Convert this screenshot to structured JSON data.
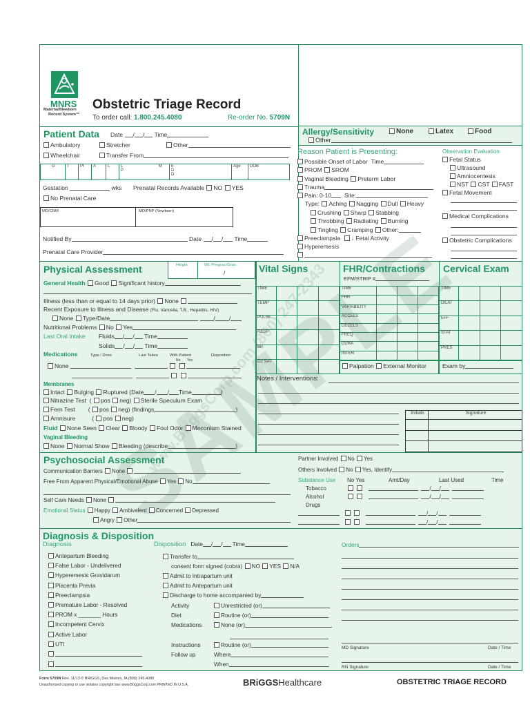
{
  "colors": {
    "brand_green": "#1f8a5a",
    "section_bg": "#e6f4ea"
  },
  "watermark": {
    "main": "SAMPLE",
    "contact": "www.BriggsCorp.com (800) 247-2343"
  },
  "header": {
    "logo_abbr": "MNRS",
    "logo_sub1": "Maternal/Newborn",
    "logo_sub2": "Record System™",
    "title": "Obstetric Triage Record",
    "order_label": "To order call:",
    "order_phone": "1.800.245.4080",
    "reorder_label": "Re-order No.",
    "reorder_no": "5709N"
  },
  "patient": {
    "title": "Patient Data",
    "date": "Date",
    "time": "Time",
    "ambulatory": "Ambulatory",
    "stretcher": "Stretcher",
    "other": "Other",
    "wheelchair": "Wheelchair",
    "transfer": "Transfer From",
    "gtpal": [
      "G",
      "T",
      "Pt",
      "A",
      "L",
      "L M P",
      "E D D",
      "Age",
      "DOB"
    ],
    "gestation": "Gestation",
    "wks": "wks",
    "prenatal_records": "Prenatal Records Available",
    "no": "NO",
    "yes": "YES",
    "no_prenatal": "No Prenatal Care",
    "md_cnm": "MD/CNM",
    "md_pnp": "MD/PNP (Newborn)",
    "notified_by": "Notified By",
    "prenatal_provider": "Prenatal Care Provider"
  },
  "allergy": {
    "title": "Allergy/Sensitivity",
    "none": "None",
    "latex": "Latex",
    "food": "Food",
    "other": "Other"
  },
  "reason": {
    "title": "Reason Patient is Presenting:",
    "onset": "Possible Onset of Labor",
    "time": "Time",
    "prom": "PROM",
    "srom": "SROM",
    "vag_bleed": "Vaginal Bleeding",
    "preterm": "Preterm Labor",
    "trauma": "Trauma",
    "pain": "Pain: 0-10",
    "site": "Site:",
    "type": "Type:",
    "aching": "Aching",
    "nagging": "Nagging",
    "dull": "Dull",
    "heavy": "Heavy",
    "crushing": "Crushing",
    "sharp": "Sharp",
    "stabbing": "Stabbing",
    "throbbing": "Throbbing",
    "radiating": "Radiating",
    "burning": "Burning",
    "tingling": "Tingling",
    "cramping": "Cramping",
    "other": "Other:",
    "preeclampsia": "Preeclampsia",
    "fetal_activity": "↓ Fetal Activity",
    "hyperemesis": "Hyperemesis"
  },
  "observation": {
    "title": "Observation Evaluation",
    "fetal_status": "Fetal Status",
    "ultrasound": "Ultrasound",
    "amnio": "Amniocentesis",
    "nst": "NST",
    "cst": "CST",
    "fast": "FAST",
    "fetal_movement": "Fetal Movement",
    "medical": "Medical Complications",
    "obstetric": "Obstetric Complications"
  },
  "physical": {
    "title": "Physical Assessment",
    "height": "Height",
    "weight": "Wt. Pregrav./Grav.",
    "weight_sep": "/",
    "general_health": "General Health",
    "good": "Good",
    "sig_history": "Significant history",
    "illness": "Illness (less than or equal to 14 days prior)",
    "none": "None",
    "exposure": "Recent Exposure to Illness and Disease",
    "exposure_list": "(Flu, Varicella, T.B., Hepatitis, HIV)",
    "type_date": "Type/Date",
    "nutritional": "Nutritional Problems",
    "no": "No",
    "yes": "Yes",
    "last_oral": "Last Oral Intake",
    "fluids": "Fluids",
    "solids": "Solids",
    "time": "Time",
    "medications": "Medications",
    "type_dose": "Type / Dose",
    "last_taken": "Last Taken",
    "with_patient": "With Patient",
    "wp_no": "No",
    "wp_yes": "Yes",
    "disposition": "Disposition",
    "membranes": "Membranes",
    "intact": "Intact",
    "bulging": "Bulging",
    "ruptured": "Ruptured",
    "date_open": "(Date",
    "nitrazine": "Nitrazine Test",
    "pos": "pos",
    "neg": "neg)",
    "sterile": "Sterile Speculum Exam",
    "fern": "Fern Test",
    "findings": "(findings",
    "amnisure": "Amnisure",
    "fluid": "Fluid",
    "none_seen": "None Seen",
    "clear": "Clear",
    "bloody": "Bloody",
    "foul": "Foul Odor",
    "meconium": "Meconium Stained",
    "vag_bleeding": "Vaginal Bleeding",
    "normal_show": "Normal Show",
    "bleeding_desc": "Bleeding (describe"
  },
  "vitals": {
    "title": "Vital Signs",
    "rows": [
      "TIME",
      "TEMP",
      "PULSE",
      "RESP",
      "BP",
      "O2 SAT"
    ]
  },
  "fhr": {
    "title": "FHR/Contractions",
    "efm": "EFM/STRIP #",
    "rows": [
      "TIME",
      "FHR",
      "VARIABILITY",
      "ACCELS",
      "DECELS",
      "FREQ",
      "DURA",
      "INTEN"
    ],
    "palpation": "Palpation",
    "external": "External Monitor"
  },
  "cervical": {
    "title": "Cervical Exam",
    "rows": [
      "TIME",
      "DILAT",
      "EFF",
      "STAT",
      "PRES"
    ],
    "exam_by": "Exam by"
  },
  "notes": {
    "title": "Notes / Interventions:",
    "initials": "Initials",
    "signature": "Signature"
  },
  "psychosocial": {
    "title": "Psychosocial Assessment",
    "comm": "Communication Barriers",
    "none": "None",
    "abuse": "Free From Apparent Physical/Emotional Abuse",
    "yes": "Yes",
    "no": "No",
    "self_care": "Self Care Needs",
    "emotional": "Emotional Status",
    "happy": "Happy",
    "ambivalent": "Ambivalent",
    "concerned": "Concerned",
    "depressed": "Depressed",
    "angry": "Angry",
    "other": "Other",
    "partner": "Partner Involved",
    "others": "Others Involved",
    "yes_identify": "Yes, Identify",
    "substance": "Substance Use",
    "amt": "Amt/Day",
    "last_used": "Last Used",
    "time": "Time",
    "tobacco": "Tobacco",
    "alcohol": "Alcohol",
    "drugs": "Drugs"
  },
  "diagnosis": {
    "title": "Diagnosis & Disposition",
    "diag_label": "Diagnosis",
    "items": [
      "Antepartum Bleeding",
      "False Labor - Undelivered",
      "Hyperemesis Gravidarum",
      "Placenta Previa",
      "Preeclampsia",
      "Premature Labor - Resolved",
      "PROM x _______ Hours",
      "Incompetent Cervix",
      "Active Labor",
      "UTI"
    ],
    "disp_label": "Disposition",
    "date": "Date",
    "time": "Time",
    "transfer": "Transfer to",
    "consent": "consent form signed (cobra)",
    "no": "NO",
    "yes": "YES",
    "na": "N/A",
    "intrapartum": "Admit to Intrapartum unit",
    "antepartum": "Admit to Antepartum unit",
    "discharge": "Discharge to home accompanied by",
    "activity": "Activity",
    "unrestricted": "Unrestricted (or)",
    "diet": "Diet",
    "routine": "Routine (or)",
    "meds": "Medications",
    "none_or": "None (or)",
    "instructions": "Instructions",
    "followup": "Follow up",
    "where": "Where",
    "when": "When",
    "orders": "Orders",
    "md_sig": "MD Signature",
    "rn_sig": "RN Signature",
    "date_time": "Date / Time"
  },
  "footer": {
    "form": "Form 5709N",
    "rev": "Rev. 11/13  © BRIGGS, Des Moines, IA  (800) 245.4080",
    "copy": "Unauthorized copying or use violates copyright law.  www.BriggsCorp.com  PRINTED IN U.S.A.",
    "brand_bold": "BRiGGS",
    "brand_light": "Healthcare",
    "record": "OBSTETRIC TRIAGE RECORD"
  }
}
